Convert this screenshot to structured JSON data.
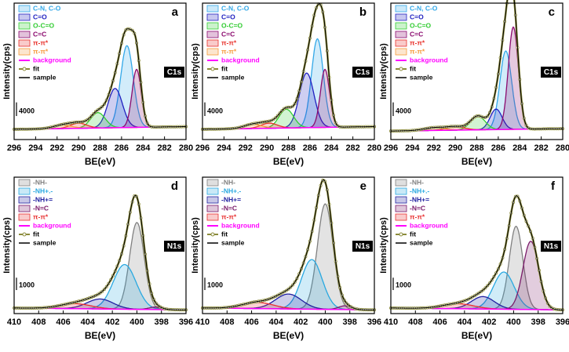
{
  "chart_data": [
    {
      "type": "line",
      "label": "a",
      "tag": "C1s",
      "xlabel": "BE(eV)",
      "ylabel": "Intensity(cps)",
      "xlim": [
        296,
        280
      ],
      "xticks": [
        296,
        294,
        292,
        290,
        288,
        286,
        284,
        282,
        280
      ],
      "ylim": [
        0,
        40000
      ],
      "scale_bar": 4000,
      "peaks": [
        {
          "name": "C-N, C-O",
          "color": "#33a8e8",
          "center": 285.5,
          "height": 24000,
          "fwhm": 1.4
        },
        {
          "name": "C=O",
          "color": "#2020c0",
          "center": 286.6,
          "height": 11500,
          "fwhm": 1.6
        },
        {
          "name": "O-C=O",
          "color": "#33cc33",
          "center": 288.2,
          "height": 4500,
          "fwhm": 1.6
        },
        {
          "name": "C=C",
          "color": "#8b0a6e",
          "center": 284.6,
          "height": 17000,
          "fwhm": 1.0
        },
        {
          "name": "π-π*",
          "color": "#e8302a",
          "center": 290.0,
          "height": 1500,
          "fwhm": 1.8
        },
        {
          "name": "π-π*",
          "color": "#f59a3b",
          "center": 291.5,
          "height": 1000,
          "fwhm": 2.0
        }
      ],
      "background": {
        "name": "background",
        "color": "#ff00ff",
        "values": [
          3000,
          3800
        ]
      },
      "fit": {
        "name": "fit",
        "color": "#8b8b3a"
      },
      "sample": {
        "name": "sample",
        "color": "#000000"
      }
    },
    {
      "type": "line",
      "label": "b",
      "tag": "C1s",
      "xlabel": "BE(eV)",
      "ylabel": "Intensity(cps)",
      "xlim": [
        296,
        280
      ],
      "xticks": [
        296,
        294,
        292,
        290,
        288,
        286,
        284,
        282,
        280
      ],
      "ylim": [
        0,
        40000
      ],
      "scale_bar": 4000,
      "peaks": [
        {
          "name": "C-N, C-O",
          "color": "#33a8e8",
          "center": 285.3,
          "height": 26000,
          "fwhm": 1.3
        },
        {
          "name": "C=O",
          "color": "#2020c0",
          "center": 286.3,
          "height": 16000,
          "fwhm": 1.6
        },
        {
          "name": "O-C=O",
          "color": "#33cc33",
          "center": 288.2,
          "height": 5500,
          "fwhm": 1.6
        },
        {
          "name": "C=C",
          "color": "#8b0a6e",
          "center": 284.6,
          "height": 17000,
          "fwhm": 1.0
        },
        {
          "name": "π-π*",
          "color": "#e8302a",
          "center": 289.8,
          "height": 1500,
          "fwhm": 1.8
        },
        {
          "name": "π-π*",
          "color": "#f59a3b",
          "center": 291.3,
          "height": 1200,
          "fwhm": 2.0
        }
      ],
      "background": {
        "name": "background",
        "color": "#ff00ff",
        "values": [
          3000,
          3800
        ]
      },
      "fit": {
        "name": "fit",
        "color": "#8b8b3a"
      },
      "sample": {
        "name": "sample",
        "color": "#000000"
      }
    },
    {
      "type": "line",
      "label": "c",
      "tag": "C1s",
      "xlabel": "BE(eV)",
      "ylabel": "Intensity(cps)",
      "xlim": [
        296,
        280
      ],
      "xticks": [
        296,
        294,
        292,
        290,
        288,
        286,
        284,
        282,
        280
      ],
      "ylim": [
        0,
        40000
      ],
      "scale_bar": 4000,
      "peaks": [
        {
          "name": "C-N, C-O",
          "color": "#33a8e8",
          "center": 285.3,
          "height": 23000,
          "fwhm": 1.3
        },
        {
          "name": "C=O",
          "color": "#2020c0",
          "center": 286.2,
          "height": 6000,
          "fwhm": 1.3
        },
        {
          "name": "O-C=O",
          "color": "#33cc33",
          "center": 287.9,
          "height": 4000,
          "fwhm": 1.6
        },
        {
          "name": "C=C",
          "color": "#8b0a6e",
          "center": 284.6,
          "height": 30000,
          "fwhm": 1.1
        },
        {
          "name": "π-π*",
          "color": "#e8302a",
          "center": 290.0,
          "height": 1000,
          "fwhm": 2.0
        },
        {
          "name": "π-π*",
          "color": "#f59a3b",
          "center": 292.0,
          "height": 800,
          "fwhm": 2.2
        }
      ],
      "background": {
        "name": "background",
        "color": "#ff00ff",
        "values": [
          2500,
          3200
        ]
      },
      "fit": {
        "name": "fit",
        "color": "#8b8b3a"
      },
      "sample": {
        "name": "sample",
        "color": "#000000"
      }
    },
    {
      "type": "line",
      "label": "d",
      "tag": "N1s",
      "xlabel": "BE(eV)",
      "ylabel": "Intensity(cps)",
      "xlim": [
        410,
        396
      ],
      "xticks": [
        410,
        408,
        406,
        404,
        402,
        400,
        398,
        396
      ],
      "ylim": [
        0,
        11000
      ],
      "scale_bar": 1000,
      "peaks": [
        {
          "name": "-NH-",
          "color": "#808080",
          "center": 400.0,
          "height": 7000,
          "fwhm": 1.4
        },
        {
          "name": "-NH+.-",
          "color": "#29a8e0",
          "center": 401.0,
          "height": 3600,
          "fwhm": 2.2
        },
        {
          "name": "-NH+=",
          "color": "#2020a0",
          "center": 403.0,
          "height": 800,
          "fwhm": 2.5
        },
        {
          "name": "-N=C",
          "color": "#7a1a6a",
          "center": 398.5,
          "height": 200,
          "fwhm": 1.2
        },
        {
          "name": "π-π*",
          "color": "#e83030",
          "center": 405.0,
          "height": 400,
          "fwhm": 3.0
        }
      ],
      "background": {
        "name": "background",
        "color": "#ff00ff",
        "values": [
          450,
          300
        ]
      },
      "fit": {
        "name": "fit",
        "color": "#8b8b3a"
      },
      "sample": {
        "name": "sample",
        "color": "#000000"
      }
    },
    {
      "type": "line",
      "label": "e",
      "tag": "N1s",
      "xlabel": "BE(eV)",
      "ylabel": "Intensity(cps)",
      "xlim": [
        410,
        396
      ],
      "xticks": [
        410,
        408,
        406,
        404,
        402,
        400,
        398,
        396
      ],
      "ylim": [
        0,
        11000
      ],
      "scale_bar": 1000,
      "peaks": [
        {
          "name": "-NH-",
          "color": "#808080",
          "center": 400.0,
          "height": 8500,
          "fwhm": 1.5
        },
        {
          "name": "-NH+.-",
          "color": "#29a8e0",
          "center": 401.1,
          "height": 4000,
          "fwhm": 2.0
        },
        {
          "name": "-NH+=",
          "color": "#2020a0",
          "center": 403.0,
          "height": 1200,
          "fwhm": 2.5
        },
        {
          "name": "-N=C",
          "color": "#7a1a6a",
          "center": 398.4,
          "height": 300,
          "fwhm": 1.2
        },
        {
          "name": "π-π*",
          "color": "#e83030",
          "center": 405.5,
          "height": 500,
          "fwhm": 3.0
        }
      ],
      "background": {
        "name": "background",
        "color": "#ff00ff",
        "values": [
          450,
          300
        ]
      },
      "fit": {
        "name": "fit",
        "color": "#8b8b3a"
      },
      "sample": {
        "name": "sample",
        "color": "#000000"
      }
    },
    {
      "type": "line",
      "label": "f",
      "tag": "N1s",
      "xlabel": "BE(eV)",
      "ylabel": "Intensity(cps)",
      "xlim": [
        410,
        396
      ],
      "xticks": [
        410,
        408,
        406,
        404,
        402,
        400,
        398,
        396
      ],
      "ylim": [
        0,
        11000
      ],
      "scale_bar": 1000,
      "peaks": [
        {
          "name": "-NH-",
          "color": "#808080",
          "center": 399.8,
          "height": 6700,
          "fwhm": 1.3
        },
        {
          "name": "-NH+.-",
          "color": "#29a8e0",
          "center": 400.8,
          "height": 3000,
          "fwhm": 2.0
        },
        {
          "name": "-NH+=",
          "color": "#2020a0",
          "center": 402.5,
          "height": 1000,
          "fwhm": 2.2
        },
        {
          "name": "-N=C",
          "color": "#7a1a6a",
          "center": 398.6,
          "height": 5500,
          "fwhm": 1.5
        },
        {
          "name": "π-π*",
          "color": "#e83030",
          "center": 404.5,
          "height": 400,
          "fwhm": 3.0
        }
      ],
      "background": {
        "name": "background",
        "color": "#ff00ff",
        "values": [
          450,
          300
        ]
      },
      "fit": {
        "name": "fit",
        "color": "#8b8b3a"
      },
      "sample": {
        "name": "sample",
        "color": "#000000"
      }
    }
  ]
}
